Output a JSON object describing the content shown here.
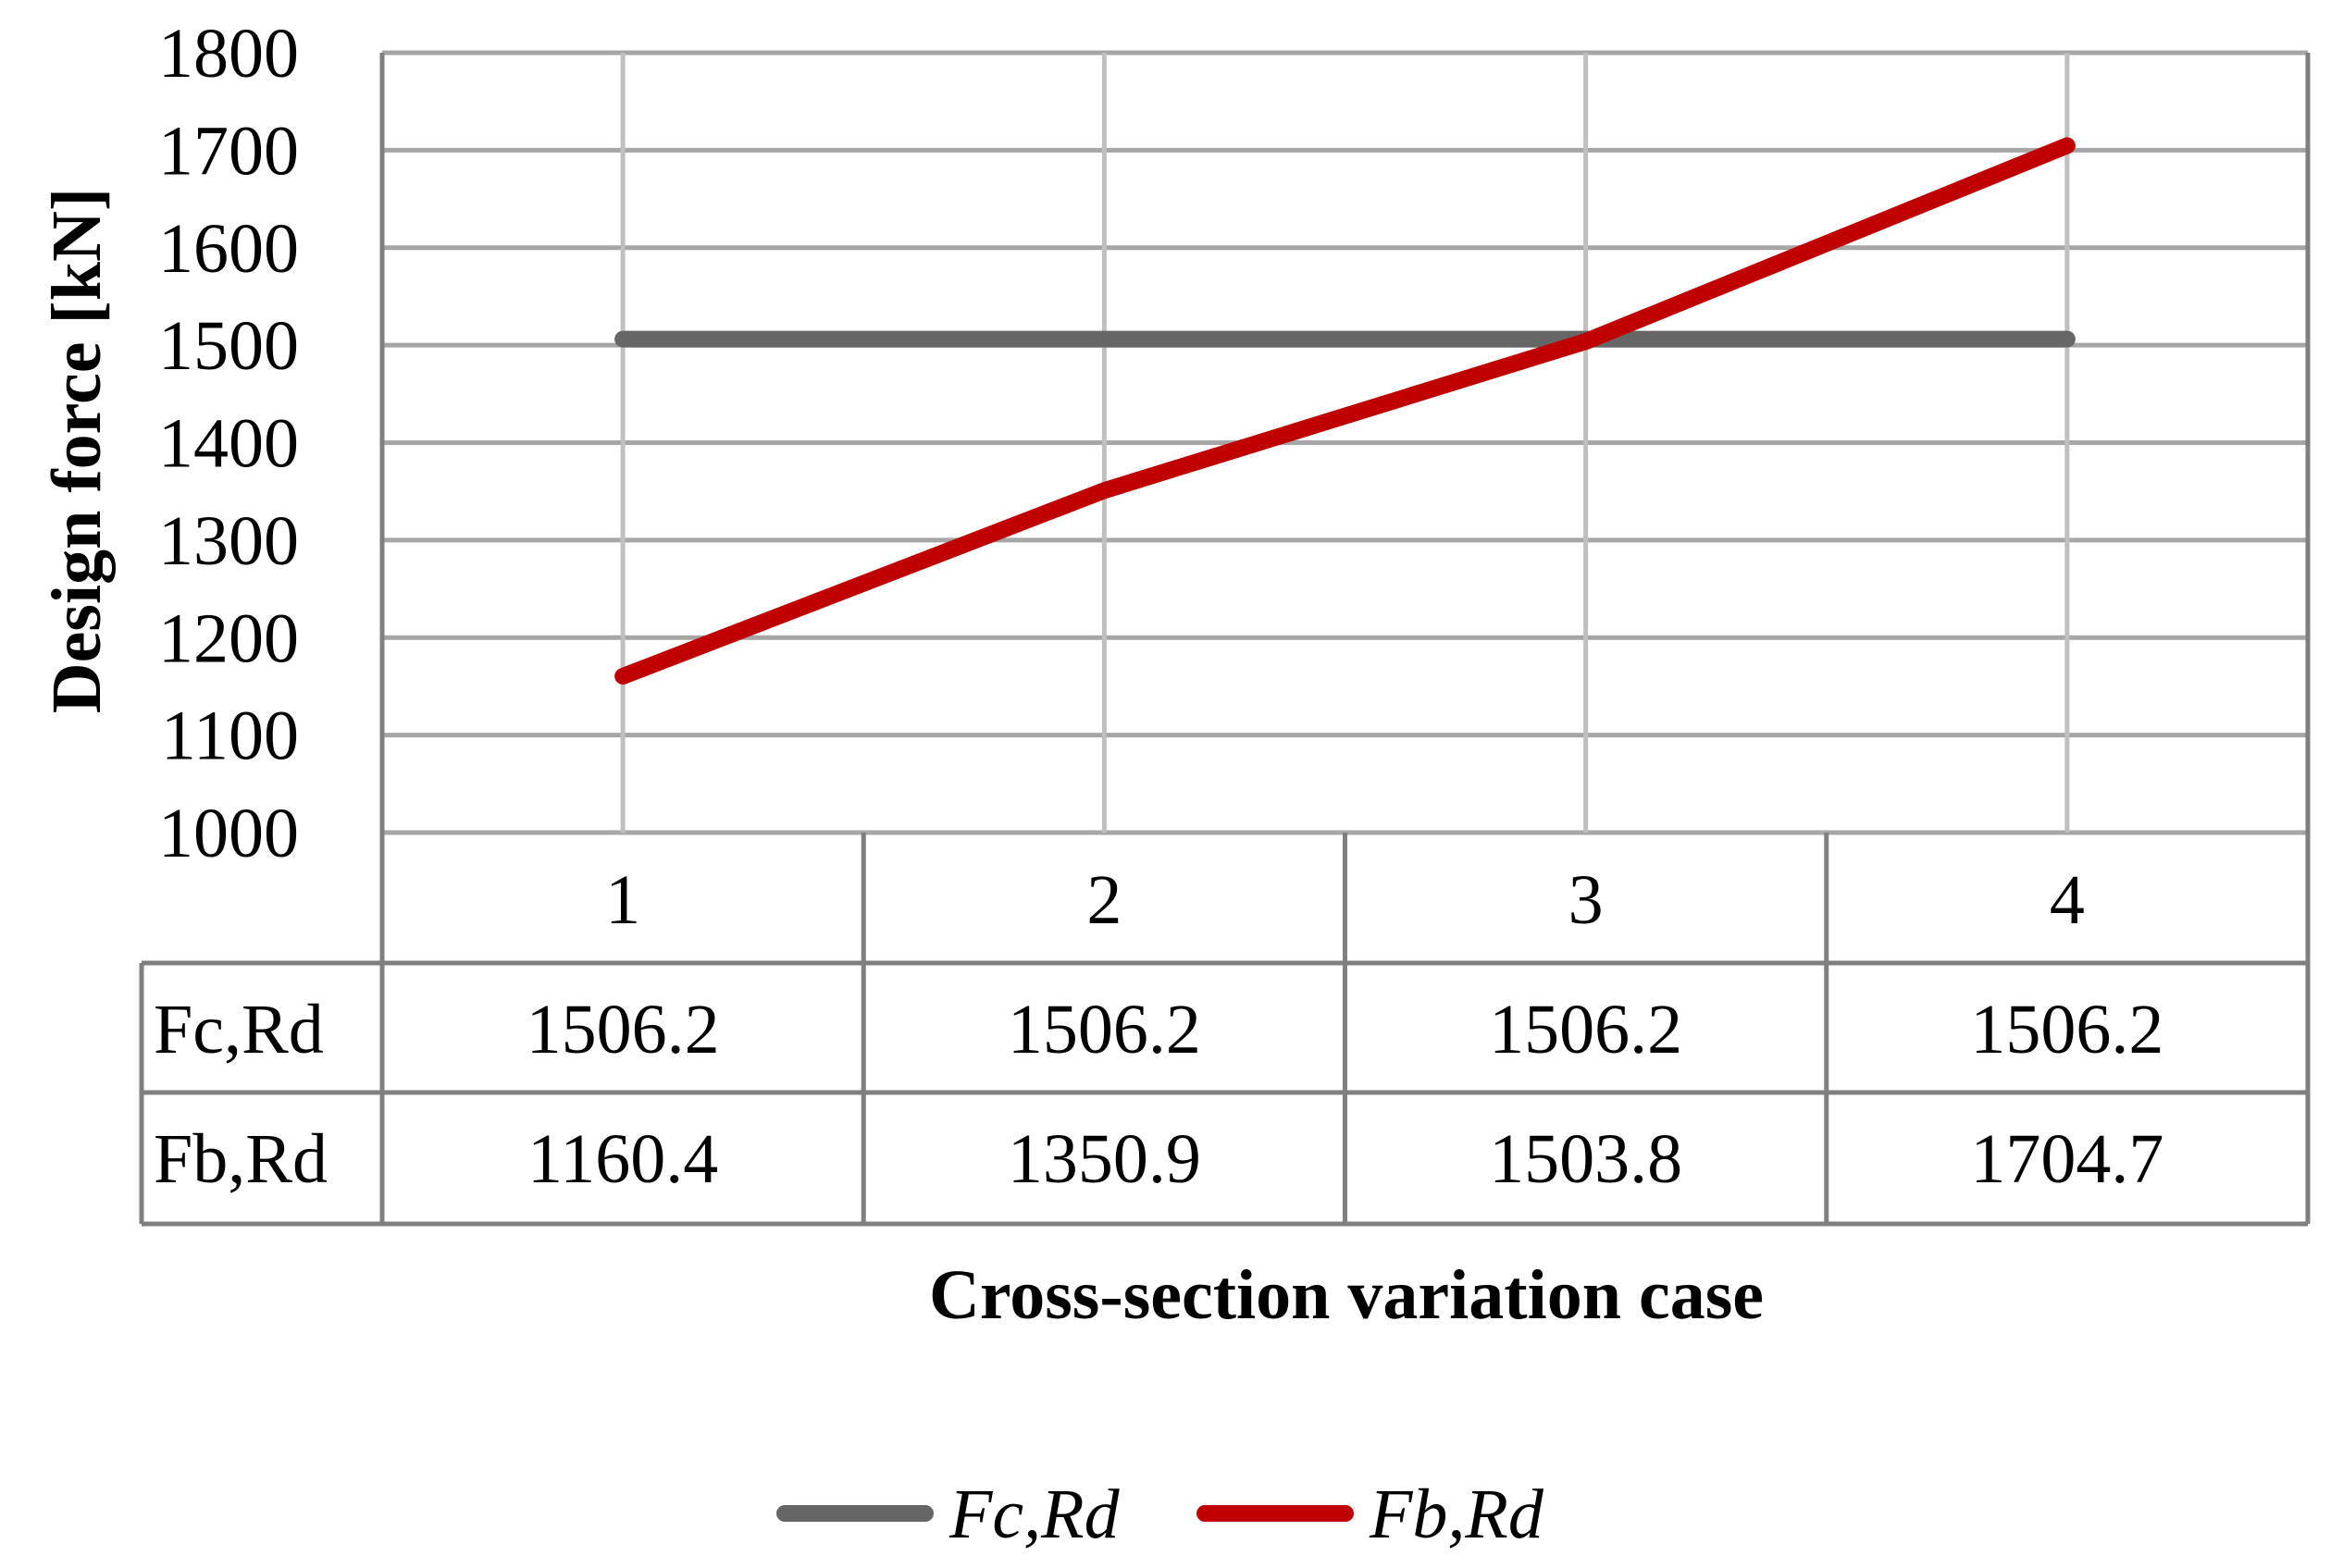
{
  "chart_data": {
    "type": "line",
    "title": "",
    "xlabel": "Cross-section variation case",
    "ylabel": "Design force [kN]",
    "categories": [
      "1",
      "2",
      "3",
      "4"
    ],
    "ylim": [
      1000,
      1800
    ],
    "yticks": [
      1000,
      1100,
      1200,
      1300,
      1400,
      1500,
      1600,
      1700,
      1800
    ],
    "yticks_label": [
      "1000",
      "1100",
      "1200",
      "1300",
      "1400",
      "1500",
      "1600",
      "1700",
      "1800"
    ],
    "grid": true,
    "legend_position": "bottom",
    "series": [
      {
        "name": "Fc,Rd",
        "color": "#666666",
        "values": [
          1506.2,
          1506.2,
          1506.2,
          1506.2
        ],
        "value_labels": [
          "1506.2",
          "1506.2",
          "1506.2",
          "1506.2"
        ]
      },
      {
        "name": "Fb,Rd",
        "color": "#c00000",
        "values": [
          1160.4,
          1350.9,
          1503.8,
          1704.7
        ],
        "value_labels": [
          "1160.4",
          "1350.9",
          "1503.8",
          "1704.7"
        ]
      }
    ]
  }
}
